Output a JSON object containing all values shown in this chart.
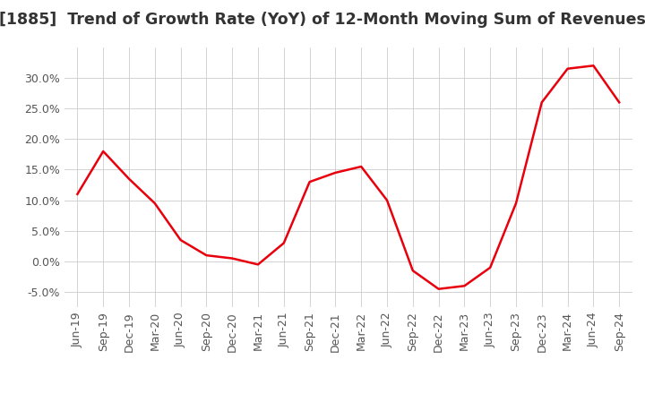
{
  "title": "[1885]  Trend of Growth Rate (YoY) of 12-Month Moving Sum of Revenues",
  "x_labels": [
    "Jun-19",
    "Sep-19",
    "Dec-19",
    "Mar-20",
    "Jun-20",
    "Sep-20",
    "Dec-20",
    "Mar-21",
    "Jun-21",
    "Sep-21",
    "Dec-21",
    "Mar-22",
    "Jun-22",
    "Sep-22",
    "Dec-22",
    "Mar-23",
    "Jun-23",
    "Sep-23",
    "Dec-23",
    "Mar-24",
    "Jun-24",
    "Sep-24"
  ],
  "y_values": [
    11.0,
    18.0,
    13.5,
    9.5,
    3.5,
    1.0,
    0.5,
    -0.5,
    3.0,
    13.0,
    14.5,
    15.5,
    10.0,
    -1.5,
    -4.5,
    -4.0,
    -1.0,
    9.5,
    26.0,
    31.5,
    32.0,
    26.0
  ],
  "line_color": "#e8000d",
  "line_width": 1.8,
  "ylim": [
    -7.5,
    35.0
  ],
  "yticks": [
    -5.0,
    0.0,
    5.0,
    10.0,
    15.0,
    20.0,
    25.0,
    30.0
  ],
  "background_color": "#ffffff",
  "grid_color": "#cccccc",
  "title_fontsize": 12.5,
  "tick_fontsize": 9.0,
  "tick_color": "#555555"
}
